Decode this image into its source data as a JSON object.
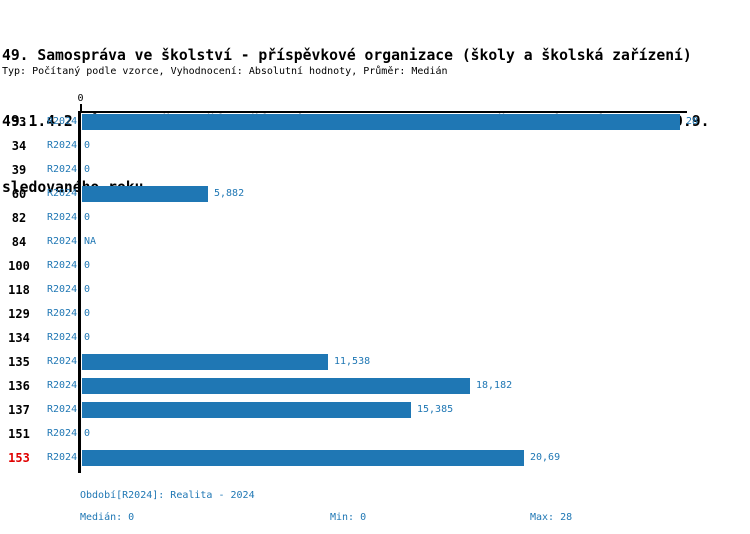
{
  "title": {
    "line1": "49. Samospráva ve školství - příspěvkové organizace (školy a školská zařízení)",
    "line2": "49.1.4.2 MŠ - % počet tříd zřízených podle § 16 odst. 9 školského zákona k 30.9.",
    "line3": "sledovaného roku"
  },
  "meta_line": "Typ: Počítaný podle vzorce, Vyhodnocení: Absolutní hodnoty, Průměr: Medián",
  "chart_data": {
    "type": "bar",
    "orientation": "horizontal",
    "title": "49.1.4.2 MŠ - % počet tříd zřízených podle § 16 odst. 9 školského zákona k 30.9. sledovaného roku",
    "series_label": "R2024",
    "axis": {
      "origin_tick_label": "0",
      "xmin": 0,
      "xmax": 28
    },
    "grid": false,
    "legend_position": "none",
    "categories": [
      "33",
      "34",
      "39",
      "60",
      "82",
      "84",
      "100",
      "118",
      "129",
      "134",
      "135",
      "136",
      "137",
      "151",
      "153"
    ],
    "values": [
      28,
      0,
      0,
      5.882,
      0,
      null,
      0,
      0,
      0,
      0,
      11.538,
      18.182,
      15.385,
      0,
      20.69
    ],
    "value_labels": [
      "28",
      "0",
      "0",
      "5,882",
      "0",
      "NA",
      "0",
      "0",
      "0",
      "0",
      "11,538",
      "18,182",
      "15,385",
      "0",
      "20,69"
    ],
    "highlighted_category": "153"
  },
  "footer": {
    "period_line": "Období[R2024]: Realita - 2024",
    "median_label": "Medián: 0",
    "min_label": "Min: 0",
    "max_label": "Max: 28"
  },
  "colors": {
    "bar": "#1f77b4",
    "blue_text": "#1f77b4",
    "highlight_text": "#e00000",
    "axis": "#000000"
  }
}
